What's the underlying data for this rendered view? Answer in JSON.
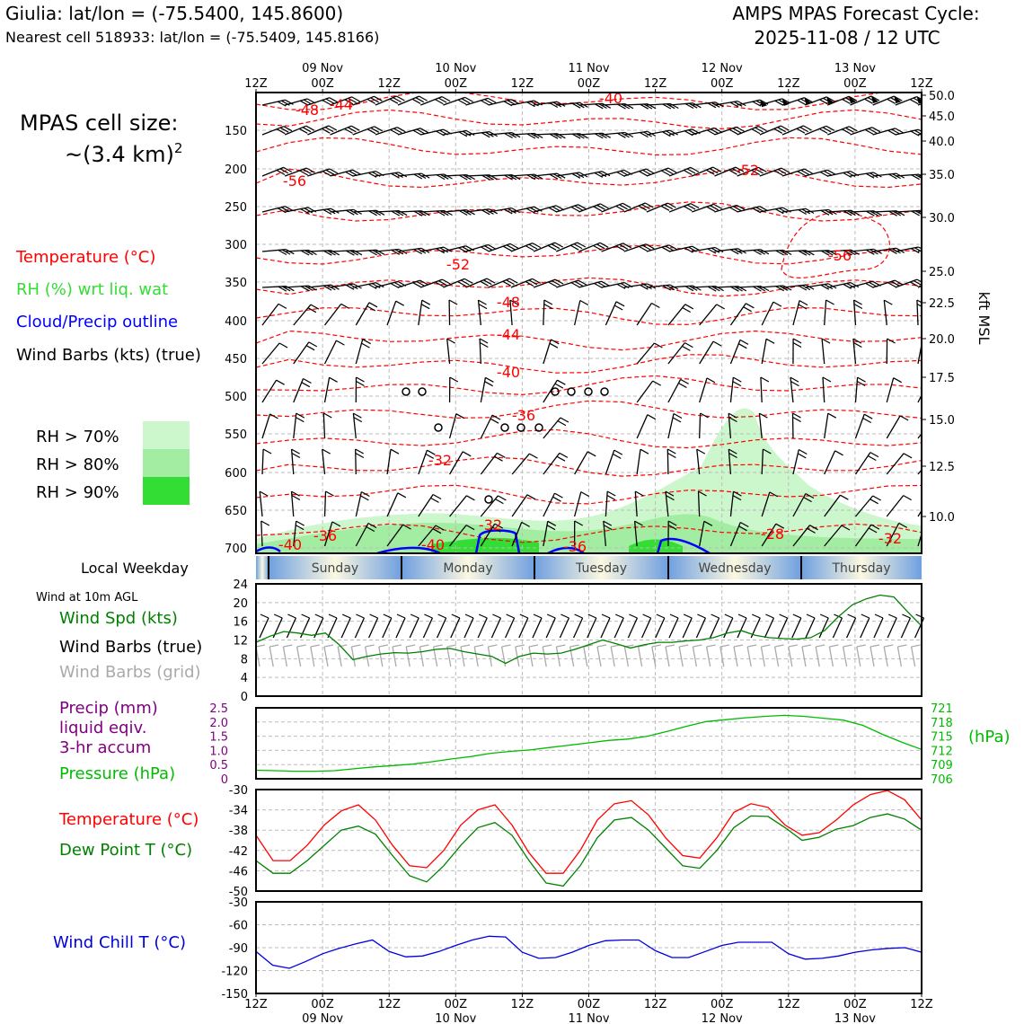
{
  "header": {
    "location": "Giulia: lat/lon = (-75.5400, 145.8600)",
    "nearest": "Nearest cell 518933: lat/lon = (-75.5409, 145.8166)",
    "cycle_line1": "AMPS MPAS Forecast Cycle:",
    "cycle_line2": "2025-11-08 / 12 UTC"
  },
  "side": {
    "cell_size_line1": "MPAS cell size:",
    "cell_size_line2": "~(3.4 km)",
    "cell_size_exp": "2",
    "legend_temp": "Temperature (°C)",
    "legend_rh": "RH (%) wrt liq. wat",
    "legend_cloud": "Cloud/Precip outline",
    "legend_wind": "Wind Barbs (kts) (true)",
    "rh70": "RH > 70%",
    "rh80": "RH > 80%",
    "rh90": "RH > 90%",
    "local_weekday": "Local Weekday",
    "wind10m": "Wind at 10m AGL",
    "wind_spd": "Wind Spd (kts)",
    "wind_barbs_true": "Wind Barbs (true)",
    "wind_barbs_grid": "Wind Barbs (grid)",
    "precip1": "Precip (mm)",
    "precip2": "liquid eqiv.",
    "precip3": "3-hr accum",
    "pressure": "Pressure (hPa)",
    "hpa_unit": "(hPa)",
    "temp": "Temperature (°C)",
    "dewpt": "Dew Point T (°C)",
    "windchill": "Wind Chill T (°C)",
    "kft_label": "kft MSL"
  },
  "colors": {
    "temp": "#ff0000",
    "rh": "#33dd33",
    "cloud": "#0000ff",
    "dewpt": "#008000",
    "pressure": "#00bb00",
    "precip": "#800080",
    "windchill": "#0000dd",
    "grid_barb": "#aaaaaa",
    "rh70": "#ccf7cc",
    "rh80": "#a3eda3",
    "rh90": "#33dd33"
  },
  "chart_data": [
    {
      "type": "line",
      "panel": "cross-section",
      "xlabel_top": [
        "12Z",
        "00Z",
        "12Z",
        "00Z",
        "12Z",
        "00Z",
        "12Z",
        "00Z",
        "12Z",
        "00Z",
        "12Z"
      ],
      "date_labels": [
        "09 Nov",
        "10 Nov",
        "11 Nov",
        "12 Nov",
        "13 Nov"
      ],
      "y_pressure_ticks": [
        150,
        200,
        250,
        300,
        350,
        400,
        450,
        500,
        550,
        600,
        650,
        700
      ],
      "y_kft_ticks": [
        "50.0",
        "45.0",
        "40.0",
        "35.0",
        "30.0",
        "25.0",
        "22.5",
        "20.0",
        "17.5",
        "15.0",
        "12.5",
        "10.0"
      ],
      "temp_labels": [
        "-48",
        "-44",
        "-40",
        "-56",
        "-52",
        "-52",
        "-56",
        "-48",
        "-44",
        "-40",
        "-36",
        "-32",
        "-32",
        "-40",
        "-36",
        "-40",
        "-36",
        "-28",
        "-32"
      ],
      "weekdays": [
        "Sunday",
        "Monday",
        "Tuesday",
        "Wednesday",
        "Thursday"
      ]
    },
    {
      "type": "line",
      "panel": "wind-10m",
      "yticks": [
        0,
        4,
        8,
        12,
        16,
        20,
        24
      ],
      "ylim": [
        0,
        24
      ],
      "series": [
        {
          "name": "Wind Spd (kts)",
          "values": [
            11.5,
            12.8,
            13.8,
            13.5,
            13.0,
            13.5,
            11.0,
            7.8,
            8.5,
            9.0,
            9.3,
            9.2,
            9.5,
            10.0,
            10.2,
            9.5,
            9.0,
            8.5,
            7.0,
            8.5,
            9.2,
            9.0,
            9.2,
            10.0,
            11.0,
            12.0,
            11.2,
            10.3,
            11.0,
            11.5,
            11.5,
            11.8,
            12.0,
            12.5,
            13.5,
            14.0,
            13.0,
            12.5,
            12.3,
            12.2,
            12.5,
            14.0,
            17.0,
            19.5,
            20.8,
            21.6,
            21.2,
            18.0,
            15.0
          ]
        }
      ]
    },
    {
      "type": "line",
      "panel": "precip-pressure",
      "precip_ticks": [
        "2.5",
        "2.0",
        "1.5",
        "1.0",
        "0.5",
        "0"
      ],
      "pressure_ticks": [
        721,
        718,
        715,
        712,
        709,
        706
      ],
      "series": [
        {
          "name": "Pressure (hPa)",
          "values": [
            707.8,
            707.7,
            707.6,
            707.6,
            707.7,
            708.1,
            708.5,
            708.8,
            709.1,
            709.6,
            710.2,
            710.7,
            711.4,
            711.8,
            712.1,
            712.6,
            713.1,
            713.6,
            714.1,
            714.4,
            715.0,
            716.0,
            717.1,
            718.1,
            718.5,
            718.9,
            719.2,
            719.4,
            719.2,
            718.8,
            718.4,
            717.3,
            715.4,
            713.7,
            712.2
          ]
        }
      ]
    },
    {
      "type": "line",
      "panel": "temp-dewpoint",
      "yticks": [
        -30,
        -34,
        -38,
        -42,
        -46,
        -50
      ],
      "ylim": [
        -50,
        -30
      ],
      "series": [
        {
          "name": "Temperature (°C)",
          "values": [
            -39,
            -44,
            -44,
            -41,
            -37,
            -34.2,
            -33,
            -36,
            -41,
            -45,
            -45.4,
            -42,
            -37,
            -34,
            -33,
            -37,
            -42.5,
            -46.5,
            -46.5,
            -42,
            -36,
            -32.8,
            -32.2,
            -35,
            -39.5,
            -43,
            -43.5,
            -39.5,
            -34.5,
            -32.8,
            -33.5,
            -37,
            -39,
            -38.5,
            -36,
            -33,
            -31,
            -30.2,
            -32,
            -36
          ]
        },
        {
          "name": "Dew Point T (°C)",
          "values": [
            -44,
            -46.5,
            -46.5,
            -44,
            -41,
            -38,
            -37.2,
            -38.8,
            -43,
            -47,
            -48.2,
            -45,
            -41,
            -37.5,
            -36.5,
            -39,
            -44,
            -48.4,
            -49,
            -45,
            -39.5,
            -36,
            -35.5,
            -38,
            -41.5,
            -45,
            -45.5,
            -42,
            -37.5,
            -35.2,
            -35.3,
            -37.5,
            -40,
            -39.4,
            -37.8,
            -37.1,
            -35.5,
            -34.8,
            -35.8,
            -38
          ]
        }
      ]
    },
    {
      "type": "line",
      "panel": "wind-chill",
      "yticks": [
        -30,
        -60,
        -90,
        -120,
        -150
      ],
      "ylim": [
        -150,
        -30
      ],
      "series": [
        {
          "name": "Wind Chill T (°C)",
          "values": [
            -95,
            -113,
            -117,
            -108,
            -98,
            -91,
            -85,
            -80,
            -95,
            -102,
            -101,
            -95,
            -87,
            -80,
            -75,
            -76,
            -96,
            -104,
            -103,
            -96,
            -87,
            -81,
            -80,
            -80,
            -94,
            -103,
            -103,
            -95,
            -87,
            -83,
            -83,
            -83,
            -98,
            -105,
            -104,
            -101,
            -96,
            -93,
            -91,
            -90,
            -96
          ]
        }
      ]
    }
  ]
}
